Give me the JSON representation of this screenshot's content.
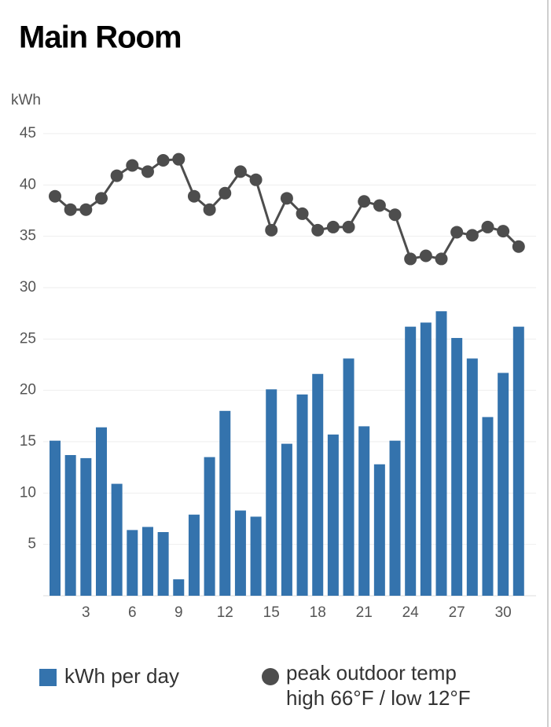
{
  "chart_data": {
    "type": "bar-line",
    "title": "Main Room",
    "y_label": "kWh",
    "categories": [
      null,
      null,
      "3",
      null,
      null,
      "6",
      null,
      null,
      "9",
      null,
      null,
      "12",
      null,
      null,
      "15",
      null,
      null,
      "18",
      null,
      null,
      "21",
      null,
      null,
      "24",
      null,
      null,
      "27",
      null,
      null,
      "30",
      null
    ],
    "ylim": [
      0,
      45
    ],
    "yticks": [
      5,
      10,
      15,
      20,
      25,
      30,
      35,
      40,
      45
    ],
    "grid": true,
    "series": [
      {
        "name": "kWh per day",
        "kind": "bar",
        "color": "#3473ad",
        "values": [
          15.1,
          13.7,
          13.4,
          16.4,
          10.9,
          6.4,
          6.7,
          6.2,
          1.6,
          7.9,
          13.5,
          18.0,
          8.3,
          7.7,
          20.1,
          14.8,
          19.6,
          21.6,
          15.7,
          23.1,
          16.5,
          12.8,
          15.1,
          26.2,
          26.6,
          27.7,
          25.1,
          23.1,
          17.4,
          21.7,
          26.2
        ]
      },
      {
        "name": "peak outdoor temp",
        "kind": "line",
        "color": "#4d4d4d",
        "values": [
          38.9,
          37.6,
          37.6,
          38.7,
          40.9,
          41.9,
          41.3,
          42.4,
          42.5,
          38.9,
          37.6,
          39.2,
          41.3,
          40.5,
          35.6,
          38.7,
          37.2,
          35.6,
          35.9,
          35.9,
          38.4,
          38.0,
          37.1,
          32.8,
          33.1,
          32.8,
          35.4,
          35.1,
          35.9,
          35.5,
          34.0
        ]
      }
    ],
    "legend_note": "high 66°F / low 12°F"
  }
}
